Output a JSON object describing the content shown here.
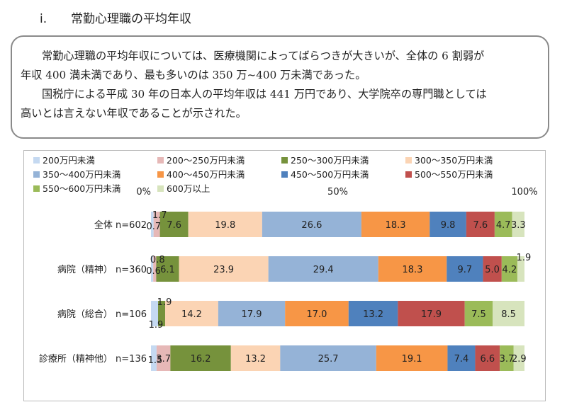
{
  "section": {
    "number": "i.",
    "title": "常勤心理職の平均年収"
  },
  "summary": {
    "line1": "常勤心理職の平均年収については、医療機関によってばらつきが大きいが、全体の 6 割弱が",
    "line2": "年収 400 満未満であり、最も多いのは 350 万~400 万未満であった。",
    "line3": "国税庁による平成 30 年の日本人の平均年収は 441 万円であり、大学院卒の専門職としては",
    "line4": "高いとは言えない年収であることが示された。"
  },
  "chart_data": {
    "type": "bar",
    "orientation": "horizontal",
    "stacked": "percent",
    "axis_ticks": [
      "0%",
      "50%",
      "100%"
    ],
    "legend_placement": "top",
    "categories": [
      "全体 n=602",
      "病院（精神） n=360",
      "病院（総合） n=106",
      "診療所（精神他） n=136"
    ],
    "series": [
      {
        "name": "200万円未満",
        "color": "#c5d9f1",
        "values": [
          0.7,
          0.6,
          1.9,
          1.5
        ],
        "labels": [
          "0.7",
          "0.6",
          "1.9",
          "1.5"
        ]
      },
      {
        "name": "200～250万円未満",
        "color": "#e6b8b7",
        "values": [
          1.7,
          0.8,
          0,
          3.7
        ],
        "labels": [
          "1.7",
          "0.8",
          "",
          "3.7"
        ]
      },
      {
        "name": "250～300万円未満",
        "color": "#76923c",
        "values": [
          7.6,
          6.1,
          1.9,
          16.2
        ],
        "labels": [
          "7.6",
          "6.1",
          "1.9",
          "16.2"
        ]
      },
      {
        "name": "300～350万円未満",
        "color": "#fbd4b4",
        "values": [
          19.8,
          23.9,
          14.2,
          13.2
        ],
        "labels": [
          "19.8",
          "23.9",
          "14.2",
          "13.2"
        ]
      },
      {
        "name": "350～400万円未満",
        "color": "#95b3d7",
        "values": [
          26.6,
          29.4,
          17.9,
          25.7
        ],
        "labels": [
          "26.6",
          "29.4",
          "17.9",
          "25.7"
        ]
      },
      {
        "name": "400～450万円未満",
        "color": "#f79646",
        "values": [
          18.3,
          18.3,
          17.0,
          19.1
        ],
        "labels": [
          "18.3",
          "18.3",
          "17.0",
          "19.1"
        ]
      },
      {
        "name": "450～500万円未満",
        "color": "#4f81bd",
        "values": [
          9.8,
          9.7,
          13.2,
          7.4
        ],
        "labels": [
          "9.8",
          "9.7",
          "13.2",
          "7.4"
        ]
      },
      {
        "name": "500～550万円未満",
        "color": "#c0504d",
        "values": [
          7.6,
          5.0,
          17.9,
          6.6
        ],
        "labels": [
          "7.6",
          "5.0",
          "17.9",
          "6.6"
        ]
      },
      {
        "name": "550～600万円未満",
        "color": "#9bbb59",
        "values": [
          4.7,
          4.2,
          7.5,
          3.7
        ],
        "labels": [
          "4.7",
          "4.2",
          "7.5",
          "3.7"
        ]
      },
      {
        "name": "600万以上",
        "color": "#d7e4bd",
        "values": [
          3.3,
          1.9,
          8.5,
          2.9
        ],
        "labels": [
          "3.3",
          "1.9",
          "8.5",
          "2.9"
        ]
      }
    ]
  }
}
